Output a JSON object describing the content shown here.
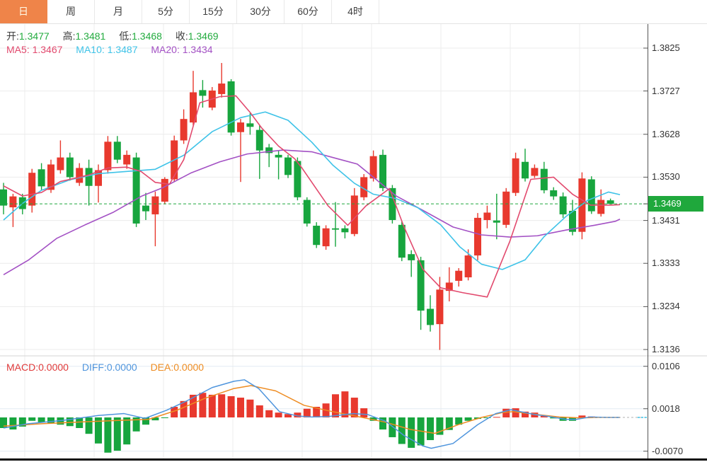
{
  "tabs": [
    {
      "label": "日",
      "active": true
    },
    {
      "label": "周",
      "active": false
    },
    {
      "label": "月",
      "active": false
    },
    {
      "label": "5分",
      "active": false
    },
    {
      "label": "15分",
      "active": false
    },
    {
      "label": "30分",
      "active": false
    },
    {
      "label": "60分",
      "active": false
    },
    {
      "label": "4时",
      "active": false
    }
  ],
  "ohlc_bar": {
    "open_label": "开:",
    "open": "1.3477",
    "high_label": "高:",
    "high": "1.3481",
    "low_label": "低:",
    "low": "1.3468",
    "close_label": "收:",
    "close": "1.3469"
  },
  "ma_bar": {
    "ma5_label": "MA5:",
    "ma5": "1.3467",
    "ma10_label": "MA10:",
    "ma10": "1.3487",
    "ma20_label": "MA20:",
    "ma20": "1.3434"
  },
  "macd_bar": {
    "macd_label": "MACD:",
    "macd": "0.0000",
    "diff_label": "DIFF:",
    "diff": "0.0000",
    "dea_label": "DEA:",
    "dea": "0.0000"
  },
  "colors": {
    "up": "#e8392e",
    "down": "#17a53e",
    "ma5": "#e24a6e",
    "ma10": "#3fc3e8",
    "ma20": "#a351c4",
    "dif": "#4f95dd",
    "dea": "#ee8c22",
    "tab_accent": "#ef8449",
    "price_flag": "#1fa83c",
    "grid": "#ececec",
    "macd_grid": "#e2ebf3",
    "axis_line": "#555555",
    "value_green": "#22ab3e",
    "macd_text_red": "#e03a3a"
  },
  "chart_data": {
    "type": "candlestick",
    "title": "",
    "legend": [
      "MA5",
      "MA10",
      "MA20",
      "MACD",
      "DIFF",
      "DEA"
    ],
    "price_axis": {
      "ticks": [
        "1.3825",
        "1.3727",
        "1.3628",
        "1.3530",
        "1.3431",
        "1.3333",
        "1.3234",
        "1.3136"
      ],
      "current": "1.3469",
      "range": [
        1.311,
        1.389
      ]
    },
    "macd_axis": {
      "ticks": [
        "0.0106",
        "0.0018",
        "-0.0070"
      ],
      "current": 0.0,
      "range": [
        -0.009,
        0.0125
      ]
    },
    "candles_ohlc": [
      [
        1.3502,
        1.3517,
        1.3445,
        1.3465
      ],
      [
        1.3461,
        1.3492,
        1.3416,
        1.3486
      ],
      [
        1.3484,
        1.3492,
        1.3445,
        1.3457
      ],
      [
        1.3465,
        1.3549,
        1.3449,
        1.354
      ],
      [
        1.3548,
        1.3562,
        1.35,
        1.3509
      ],
      [
        1.3501,
        1.357,
        1.3494,
        1.3559
      ],
      [
        1.3546,
        1.3614,
        1.3538,
        1.3575
      ],
      [
        1.3575,
        1.3586,
        1.3522,
        1.353
      ],
      [
        1.3517,
        1.3562,
        1.351,
        1.3551
      ],
      [
        1.3551,
        1.357,
        1.3465,
        1.351
      ],
      [
        1.351,
        1.3559,
        1.3472,
        1.3546
      ],
      [
        1.3546,
        1.3624,
        1.3538,
        1.3611
      ],
      [
        1.3611,
        1.3624,
        1.3562,
        1.357
      ],
      [
        1.3559,
        1.3591,
        1.3549,
        1.3581
      ],
      [
        1.3575,
        1.3586,
        1.3416,
        1.3424
      ],
      [
        1.3465,
        1.3494,
        1.3432,
        1.3452
      ],
      [
        1.3445,
        1.3497,
        1.3372,
        1.3486
      ],
      [
        1.3474,
        1.353,
        1.3468,
        1.3526
      ],
      [
        1.3525,
        1.3625,
        1.352,
        1.3614
      ],
      [
        1.3614,
        1.3685,
        1.3606,
        1.3663
      ],
      [
        1.3655,
        1.3773,
        1.3648,
        1.3724
      ],
      [
        1.3729,
        1.3752,
        1.3689,
        1.3716
      ],
      [
        1.3689,
        1.3736,
        1.3683,
        1.3728
      ],
      [
        1.372,
        1.3791,
        1.3712,
        1.3744
      ],
      [
        1.3749,
        1.3754,
        1.3625,
        1.3632
      ],
      [
        1.3633,
        1.3663,
        1.3519,
        1.3655
      ],
      [
        1.3653,
        1.3676,
        1.3627,
        1.3645
      ],
      [
        1.3638,
        1.3648,
        1.3526,
        1.3591
      ],
      [
        1.3598,
        1.3606,
        1.3553,
        1.3585
      ],
      [
        1.3581,
        1.359,
        1.3525,
        1.3575
      ],
      [
        1.3575,
        1.3581,
        1.3528,
        1.3535
      ],
      [
        1.3567,
        1.3575,
        1.3477,
        1.3484
      ],
      [
        1.3478,
        1.3484,
        1.3417,
        1.3424
      ],
      [
        1.3419,
        1.3427,
        1.3368,
        1.3375
      ],
      [
        1.3372,
        1.342,
        1.3364,
        1.3413
      ],
      [
        1.3413,
        1.3473,
        1.3371,
        1.341
      ],
      [
        1.3413,
        1.342,
        1.339,
        1.3404
      ],
      [
        1.34,
        1.3505,
        1.3395,
        1.3488
      ],
      [
        1.3484,
        1.3537,
        1.3477,
        1.353
      ],
      [
        1.3527,
        1.3591,
        1.352,
        1.3578
      ],
      [
        1.3581,
        1.3593,
        1.3498,
        1.3505
      ],
      [
        1.3505,
        1.3512,
        1.3424,
        1.3432
      ],
      [
        1.3421,
        1.3429,
        1.3338,
        1.3346
      ],
      [
        1.3354,
        1.3363,
        1.3302,
        1.334
      ],
      [
        1.334,
        1.3348,
        1.3181,
        1.3225
      ],
      [
        1.3229,
        1.326,
        1.3177,
        1.3192
      ],
      [
        1.3194,
        1.3302,
        1.3135,
        1.3273
      ],
      [
        1.327,
        1.3324,
        1.3246,
        1.3289
      ],
      [
        1.3293,
        1.3322,
        1.328,
        1.3316
      ],
      [
        1.3301,
        1.3365,
        1.3294,
        1.3351
      ],
      [
        1.3351,
        1.3448,
        1.334,
        1.3437
      ],
      [
        1.3432,
        1.3465,
        1.3413,
        1.3449
      ],
      [
        1.3431,
        1.3492,
        1.3388,
        1.3426
      ],
      [
        1.3421,
        1.3505,
        1.3414,
        1.3497
      ],
      [
        1.3494,
        1.3586,
        1.3487,
        1.3573
      ],
      [
        1.3565,
        1.3595,
        1.352,
        1.3527
      ],
      [
        1.3533,
        1.3559,
        1.3528,
        1.3551
      ],
      [
        1.3549,
        1.3565,
        1.3493,
        1.35
      ],
      [
        1.35,
        1.3507,
        1.3478,
        1.3486
      ],
      [
        1.3486,
        1.3495,
        1.3437,
        1.3445
      ],
      [
        1.3453,
        1.3478,
        1.3397,
        1.3405
      ],
      [
        1.3405,
        1.3541,
        1.3388,
        1.3527
      ],
      [
        1.3525,
        1.3532,
        1.3446,
        1.3452
      ],
      [
        1.3446,
        1.3502,
        1.344,
        1.3478
      ],
      [
        1.3477,
        1.3481,
        1.3468,
        1.3469
      ]
    ],
    "ma5_points": [
      [
        0,
        1.351
      ],
      [
        2,
        1.3487
      ],
      [
        4,
        1.3495
      ],
      [
        6,
        1.352
      ],
      [
        9,
        1.3535
      ],
      [
        11,
        1.3551
      ],
      [
        13,
        1.3553
      ],
      [
        14.5,
        1.3543
      ],
      [
        16,
        1.3518
      ],
      [
        17.5,
        1.3514
      ],
      [
        19,
        1.357
      ],
      [
        20.7,
        1.37
      ],
      [
        22.8,
        1.3714
      ],
      [
        24.5,
        1.3716
      ],
      [
        26,
        1.3678
      ],
      [
        27.2,
        1.3643
      ],
      [
        29,
        1.3601
      ],
      [
        30.7,
        1.3572
      ],
      [
        31.5,
        1.355
      ],
      [
        34.2,
        1.3465
      ],
      [
        36.3,
        1.342
      ],
      [
        38.2,
        1.3464
      ],
      [
        40.7,
        1.3504
      ],
      [
        42.2,
        1.3418
      ],
      [
        44.2,
        1.332
      ],
      [
        46.1,
        1.3277
      ],
      [
        48.4,
        1.3266
      ],
      [
        51,
        1.3256
      ],
      [
        53.4,
        1.3384
      ],
      [
        55.6,
        1.3525
      ],
      [
        58,
        1.353
      ],
      [
        60,
        1.3491
      ],
      [
        61.9,
        1.3466
      ],
      [
        64,
        1.3466
      ],
      [
        65,
        1.3467
      ]
    ],
    "ma10_points": [
      [
        0,
        1.3432
      ],
      [
        2,
        1.347
      ],
      [
        4,
        1.35
      ],
      [
        7,
        1.3524
      ],
      [
        10,
        1.3538
      ],
      [
        13,
        1.3543
      ],
      [
        16,
        1.3548
      ],
      [
        19,
        1.358
      ],
      [
        22,
        1.3634
      ],
      [
        25,
        1.3666
      ],
      [
        27.6,
        1.3679
      ],
      [
        30,
        1.366
      ],
      [
        32.5,
        1.361
      ],
      [
        34.7,
        1.3558
      ],
      [
        37,
        1.3516
      ],
      [
        39,
        1.3491
      ],
      [
        41.4,
        1.3481
      ],
      [
        43.7,
        1.346
      ],
      [
        46.1,
        1.3421
      ],
      [
        48.1,
        1.3371
      ],
      [
        50.4,
        1.3331
      ],
      [
        52.6,
        1.3319
      ],
      [
        55,
        1.3341
      ],
      [
        57,
        1.3394
      ],
      [
        59.3,
        1.344
      ],
      [
        61.6,
        1.3477
      ],
      [
        63.8,
        1.3496
      ],
      [
        65,
        1.349
      ]
    ],
    "ma20_points": [
      [
        0,
        1.3307
      ],
      [
        2.6,
        1.334
      ],
      [
        5.6,
        1.339
      ],
      [
        8.6,
        1.3421
      ],
      [
        11.6,
        1.345
      ],
      [
        14.6,
        1.3487
      ],
      [
        16.8,
        1.3506
      ],
      [
        19.8,
        1.354
      ],
      [
        22.8,
        1.3565
      ],
      [
        25.7,
        1.3583
      ],
      [
        29.5,
        1.3592
      ],
      [
        32.5,
        1.3588
      ],
      [
        35.4,
        1.3571
      ],
      [
        37.3,
        1.356
      ],
      [
        39.5,
        1.3521
      ],
      [
        41.4,
        1.3487
      ],
      [
        44.4,
        1.3452
      ],
      [
        47.4,
        1.3416
      ],
      [
        50.4,
        1.3398
      ],
      [
        53.4,
        1.3393
      ],
      [
        56.3,
        1.3396
      ],
      [
        59.3,
        1.3409
      ],
      [
        62.3,
        1.342
      ],
      [
        64.5,
        1.3429
      ],
      [
        65,
        1.3434
      ]
    ],
    "macd_hist": [
      -0.0022,
      -0.0025,
      -0.0019,
      -0.0007,
      -0.001,
      -0.0012,
      -0.0015,
      -0.0018,
      -0.0022,
      -0.0034,
      -0.0054,
      -0.0073,
      -0.0069,
      -0.0056,
      -0.0029,
      -0.0015,
      -0.0006,
      -0.0001,
      0.0022,
      0.0034,
      0.0047,
      0.0051,
      0.0047,
      0.0048,
      0.0044,
      0.0041,
      0.0037,
      0.0025,
      0.0015,
      0.001,
      0.0007,
      0.001,
      0.0018,
      0.0022,
      0.0029,
      0.0048,
      0.0054,
      0.0041,
      0.0019,
      -0.0007,
      -0.0025,
      -0.0041,
      -0.0055,
      -0.0063,
      -0.0058,
      -0.0047,
      -0.0036,
      -0.0026,
      -0.0015,
      -0.0007,
      -0.0003,
      -0.0001,
      0.0001,
      0.0018,
      0.0019,
      0.0012,
      0.001,
      0.0003,
      -0.0002,
      -0.0007,
      -0.0007,
      0.0004,
      0.0002,
      0.0,
      0.0
    ],
    "dif_points": [
      [
        0,
        -0.0022
      ],
      [
        2.6,
        -0.0013
      ],
      [
        6.3,
        -0.0006
      ],
      [
        10,
        0.0004
      ],
      [
        12.7,
        0.0008
      ],
      [
        14.9,
        -0.0002
      ],
      [
        17.2,
        0.0015
      ],
      [
        19.4,
        0.0035
      ],
      [
        22,
        0.0062
      ],
      [
        24.3,
        0.0075
      ],
      [
        25.4,
        0.0078
      ],
      [
        26.9,
        0.006
      ],
      [
        29.1,
        0.0012
      ],
      [
        31,
        0.0003
      ],
      [
        32.5,
        0.0001
      ],
      [
        34.3,
        0.0002
      ],
      [
        36.9,
        0.0008
      ],
      [
        38.4,
        0.0006
      ],
      [
        40.3,
        -0.0008
      ],
      [
        42.2,
        -0.0037
      ],
      [
        44.2,
        -0.0059
      ],
      [
        45.1,
        -0.0064
      ],
      [
        47.4,
        -0.0054
      ],
      [
        50,
        -0.0015
      ],
      [
        51.9,
        0.0008
      ],
      [
        53.5,
        0.0016
      ],
      [
        56,
        0.0006
      ],
      [
        57.5,
        0.0002
      ],
      [
        59.3,
        -0.0004
      ],
      [
        60.4,
        -0.0004
      ],
      [
        61.9,
        0.0001
      ],
      [
        63.8,
        0.0
      ],
      [
        65,
        0.0
      ]
    ],
    "dea_points": [
      [
        0,
        -0.0018
      ],
      [
        4.1,
        -0.0013
      ],
      [
        8.6,
        -0.0009
      ],
      [
        12.3,
        -0.0006
      ],
      [
        15.3,
        -0.0004
      ],
      [
        18.3,
        0.0015
      ],
      [
        21.3,
        0.004
      ],
      [
        24.3,
        0.006
      ],
      [
        26.1,
        0.0066
      ],
      [
        28.7,
        0.0055
      ],
      [
        31.7,
        0.0025
      ],
      [
        34.7,
        0.0012
      ],
      [
        37.3,
        0.0002
      ],
      [
        40.3,
        -0.001
      ],
      [
        42.9,
        -0.0025
      ],
      [
        45.5,
        -0.0033
      ],
      [
        48.1,
        -0.0014
      ],
      [
        50.4,
        0.0
      ],
      [
        52.6,
        0.001
      ],
      [
        53.7,
        0.0012
      ],
      [
        56.3,
        0.0006
      ],
      [
        58.6,
        0.0001
      ],
      [
        60.8,
        -0.0001
      ],
      [
        63,
        0.0
      ],
      [
        65,
        0.0
      ]
    ]
  }
}
